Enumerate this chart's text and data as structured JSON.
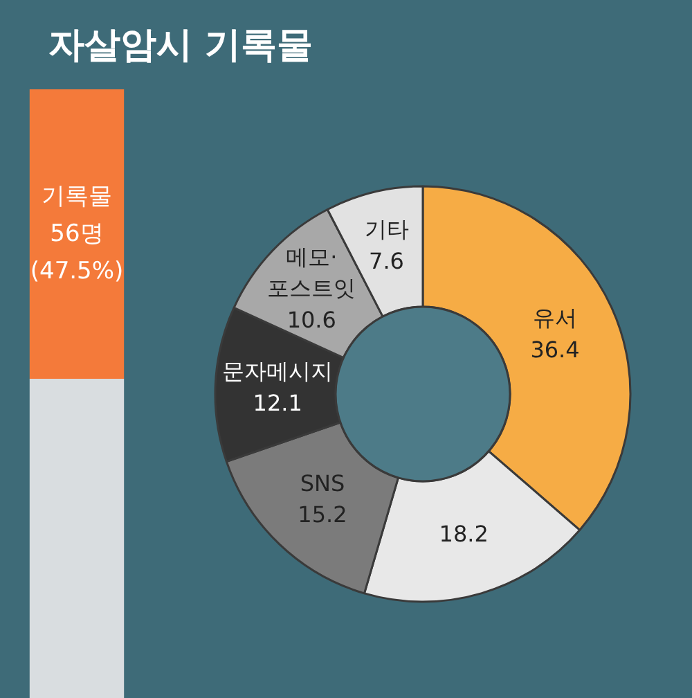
{
  "chart_data": [
    {
      "type": "bar",
      "title": "자살암시 기록물",
      "stacked": true,
      "categories": [
        null
      ],
      "ylim": [
        0,
        100
      ],
      "tick_labels": false,
      "series": [
        {
          "color": "#d9dde0",
          "values": [
            52.5
          ]
        },
        {
          "color": "#f47a3a",
          "values": [
            47.5
          ],
          "value_labels": [
            "기록물\n56명\n(47.5%)"
          ]
        }
      ]
    },
    {
      "type": "donut",
      "categories": [
        "유서",
        null,
        "SNS",
        "문자메시지",
        "메모·\n포스트잇",
        "기타"
      ],
      "values": [
        36.4,
        18.2,
        15.2,
        12.1,
        10.6,
        7.6
      ],
      "colors": [
        "#f6ac45",
        "#e8e8e8",
        "#7b7b7b",
        "#333333",
        "#a8a8a8",
        "#e2e2e2"
      ],
      "data_labels": true
    }
  ]
}
